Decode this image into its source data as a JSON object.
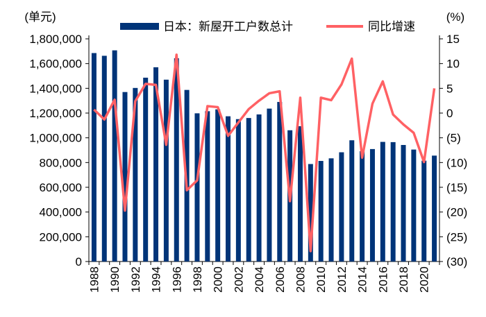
{
  "chart_data": {
    "type": "bar+line",
    "left_unit": "(单元)",
    "right_unit": "(%)",
    "categories": [
      "1988",
      "1989",
      "1990",
      "1991",
      "1992",
      "1993",
      "1994",
      "1995",
      "1996",
      "1997",
      "1998",
      "1999",
      "2000",
      "2001",
      "2002",
      "2003",
      "2004",
      "2005",
      "2006",
      "2007",
      "2008",
      "2009",
      "2010",
      "2011",
      "2012",
      "2013",
      "2014",
      "2015",
      "2016",
      "2017",
      "2018",
      "2019",
      "2020",
      "2021"
    ],
    "x_tick_labels": [
      "1988",
      "1990",
      "1992",
      "1994",
      "1996",
      "1998",
      "2000",
      "2002",
      "2004",
      "2006",
      "2008",
      "2010",
      "2012",
      "2014",
      "2016",
      "2018",
      "2020"
    ],
    "series": [
      {
        "name": "日本：新屋开工户数总计",
        "type": "bar",
        "axis": "left",
        "color": "#003478",
        "values": [
          1685000,
          1663000,
          1707000,
          1370000,
          1403000,
          1486000,
          1570000,
          1470000,
          1643000,
          1387000,
          1198000,
          1215000,
          1230000,
          1174000,
          1151000,
          1160000,
          1189000,
          1236000,
          1290000,
          1061000,
          1094000,
          788000,
          813000,
          834000,
          883000,
          980000,
          892000,
          909000,
          967000,
          965000,
          942000,
          905000,
          815000,
          856000
        ]
      },
      {
        "name": "同比增速",
        "type": "line",
        "axis": "right",
        "color": "#FF6164",
        "values": [
          0.7,
          -1.3,
          2.7,
          -19.7,
          2.4,
          5.9,
          5.7,
          -6.4,
          11.8,
          -15.6,
          -13.6,
          1.4,
          1.2,
          -4.6,
          -1.9,
          0.8,
          2.5,
          4.0,
          4.4,
          -17.8,
          3.1,
          -27.9,
          3.1,
          2.6,
          5.8,
          11.0,
          -9.0,
          1.9,
          6.4,
          -0.3,
          -2.3,
          -4.0,
          -9.9,
          5.0
        ]
      }
    ],
    "left_axis": {
      "ylim": [
        0,
        1800000
      ],
      "ticks": [
        "0",
        "200,000",
        "400,000",
        "600,000",
        "800,000",
        "1,000,000",
        "1,200,000",
        "1,400,000",
        "1,600,000",
        "1,800,000"
      ]
    },
    "right_axis": {
      "ylim": [
        -30,
        15
      ],
      "ticks": [
        "(30)",
        "(25)",
        "(20)",
        "(15)",
        "(10)",
        "(5)",
        "0",
        "5",
        "10",
        "15"
      ]
    },
    "grid": false,
    "legend": "top"
  }
}
